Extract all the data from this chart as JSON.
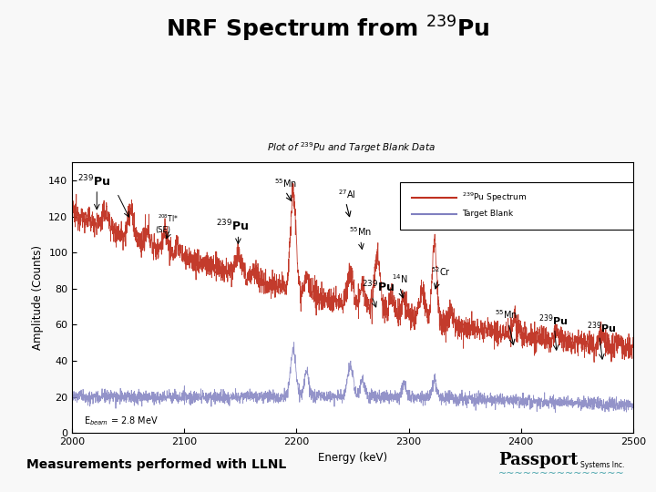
{
  "title": "NRF Spectrum from $^{239}$Pu",
  "subtitle": "Plot of $^{239}$Pu and Target Blank Data",
  "xlabel": "Energy (keV)",
  "ylabel": "Amplitude (Counts)",
  "xlim": [
    2000,
    2500
  ],
  "ylim": [
    0,
    150
  ],
  "yticks": [
    0,
    20,
    40,
    60,
    80,
    100,
    120,
    140
  ],
  "xticks": [
    2000,
    2100,
    2200,
    2300,
    2400,
    2500
  ],
  "red_color": "#c03020",
  "blue_color": "#8080c0",
  "background": "#f8f8f8",
  "plot_bg": "#ffffff",
  "measurements_text": "Measurements performed with LLNL",
  "ebeam_text": "E$_{beam}$ = 2.8 MeV",
  "legend_pu": "$^{239}$Pu Spectrum",
  "legend_blank": "Target Blank",
  "border_color": "#a0d0d8",
  "title_fontsize": 18,
  "subtitle_fontsize": 7.5
}
